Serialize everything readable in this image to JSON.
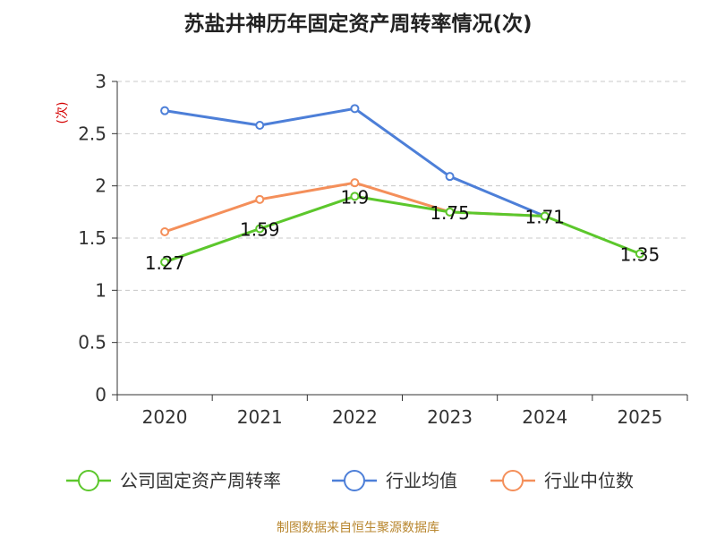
{
  "chart_data": {
    "type": "line",
    "title": "苏盐井神历年固定资产周转率情况(次)",
    "ylabel": "(次)",
    "xlabel": "",
    "ylim": [
      0,
      3
    ],
    "yticks": [
      "0",
      "0.5",
      "1",
      "1.5",
      "2",
      "2.5",
      "3"
    ],
    "categories": [
      "2020",
      "2021",
      "2022",
      "2023",
      "2024",
      "2025"
    ],
    "grid": true,
    "legend_position": "bottom",
    "series": [
      {
        "name": "公司固定资产周转率",
        "color": "#5cc72c",
        "values": [
          1.27,
          1.59,
          1.9,
          1.75,
          1.71,
          1.35
        ],
        "labels": [
          "1.27",
          "1.59",
          "1.9",
          "1.75",
          "1.71",
          "1.35"
        ]
      },
      {
        "name": "行业均值",
        "color": "#4d7fd8",
        "values": [
          2.72,
          2.58,
          2.74,
          2.09,
          1.71,
          null
        ]
      },
      {
        "name": "行业中位数",
        "color": "#f48f5a",
        "values": [
          1.56,
          1.87,
          2.03,
          1.75,
          1.71,
          null
        ]
      }
    ],
    "source": "制图数据来自恒生聚源数据库"
  }
}
